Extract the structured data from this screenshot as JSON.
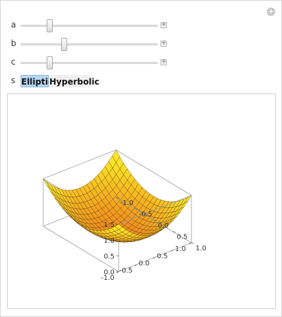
{
  "controls": {
    "sliders": [
      {
        "name": "a",
        "label": "a",
        "value_fraction": 0.2
      },
      {
        "name": "b",
        "label": "b",
        "value_fraction": 0.31
      },
      {
        "name": "c",
        "label": "c",
        "value_fraction": 0.2
      }
    ],
    "s": {
      "label": "s",
      "options": [
        "Elliptic",
        "Hyperbolic"
      ],
      "selected": "Elliptic"
    }
  },
  "plot": {
    "type": "surface",
    "surface_kind": "elliptic paraboloid",
    "x_ticks": [
      "-1.0",
      "-0.5",
      "0.0",
      "0.5",
      "1.0"
    ],
    "y_ticks": [
      "-1.0",
      "-0.5",
      "0.0",
      "0.5",
      "1.0"
    ],
    "z_ticks": [
      "0.0",
      "0.5",
      "1.0",
      "1.5"
    ],
    "x_range": [
      -1,
      1
    ],
    "y_range": [
      -1,
      1
    ],
    "z_range": [
      0,
      1.5
    ],
    "colors": {
      "low": "#f08a1c",
      "high": "#fde427",
      "mesh": "#3a2a10",
      "box": "#9a9a9a"
    }
  }
}
